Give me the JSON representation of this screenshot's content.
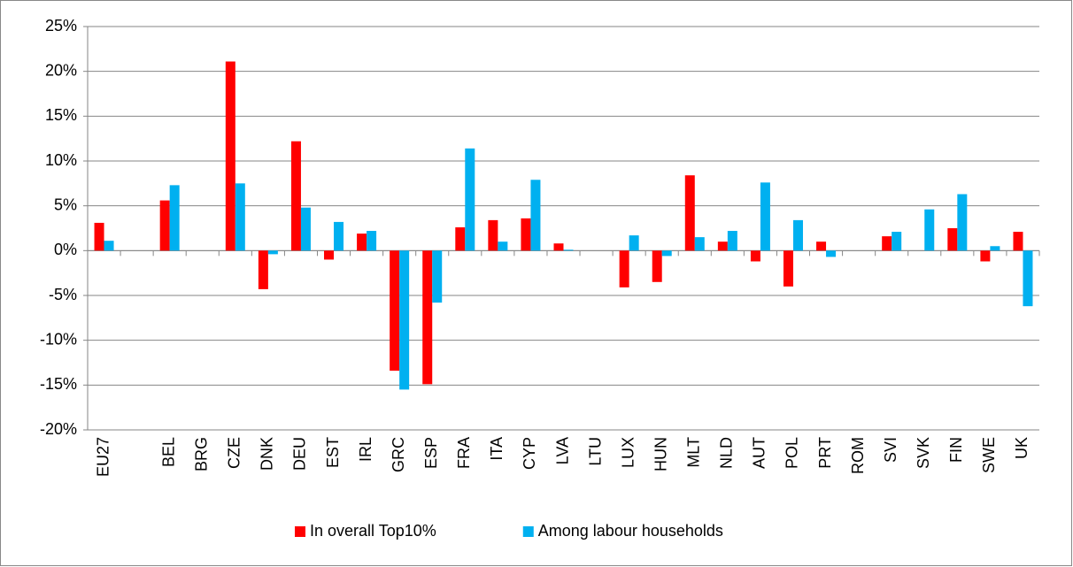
{
  "chart_data": {
    "type": "bar",
    "categories": [
      "EU27",
      null,
      "BEL",
      "BRG",
      "CZE",
      "DNK",
      "DEU",
      "EST",
      "IRL",
      "GRC",
      "ESP",
      "FRA",
      "ITA",
      "CYP",
      "LVA",
      "LTU",
      "LUX",
      "HUN",
      "MLT",
      "NLD",
      "AUT",
      "POL",
      "PRT",
      "ROM",
      "SVI",
      "SVK",
      "FIN",
      "SWE",
      "UK"
    ],
    "series": [
      {
        "name": "In overall Top10%",
        "color": "#ff0000",
        "values": [
          3.1,
          null,
          5.6,
          null,
          21.1,
          -4.3,
          12.2,
          -1.0,
          1.9,
          -13.4,
          -14.9,
          2.6,
          3.4,
          3.6,
          0.8,
          null,
          -4.1,
          -3.5,
          8.4,
          1.0,
          -1.2,
          -4.0,
          1.0,
          null,
          1.6,
          null,
          2.5,
          -1.2,
          2.1
        ]
      },
      {
        "name": "Among labour households",
        "color": "#00b0f0",
        "values": [
          1.1,
          null,
          7.3,
          null,
          7.5,
          -0.4,
          4.8,
          3.2,
          2.2,
          -15.5,
          -5.8,
          11.4,
          1.0,
          7.9,
          0.1,
          null,
          1.7,
          -0.6,
          1.5,
          2.2,
          7.6,
          3.4,
          -0.7,
          null,
          2.1,
          4.6,
          6.3,
          0.5,
          -6.2
        ]
      }
    ],
    "ylim": [
      -20,
      25
    ],
    "yticks": [
      {
        "value": -20,
        "label": "-20%"
      },
      {
        "value": -15,
        "label": "-15%"
      },
      {
        "value": -10,
        "label": "-10%"
      },
      {
        "value": -5,
        "label": "-5%"
      },
      {
        "value": 0,
        "label": "0%"
      },
      {
        "value": 5,
        "label": "5%"
      },
      {
        "value": 10,
        "label": "10%"
      },
      {
        "value": 15,
        "label": "15%"
      },
      {
        "value": 20,
        "label": "20%"
      },
      {
        "value": 25,
        "label": "25%"
      }
    ],
    "grid": true,
    "legend": "bottom"
  }
}
